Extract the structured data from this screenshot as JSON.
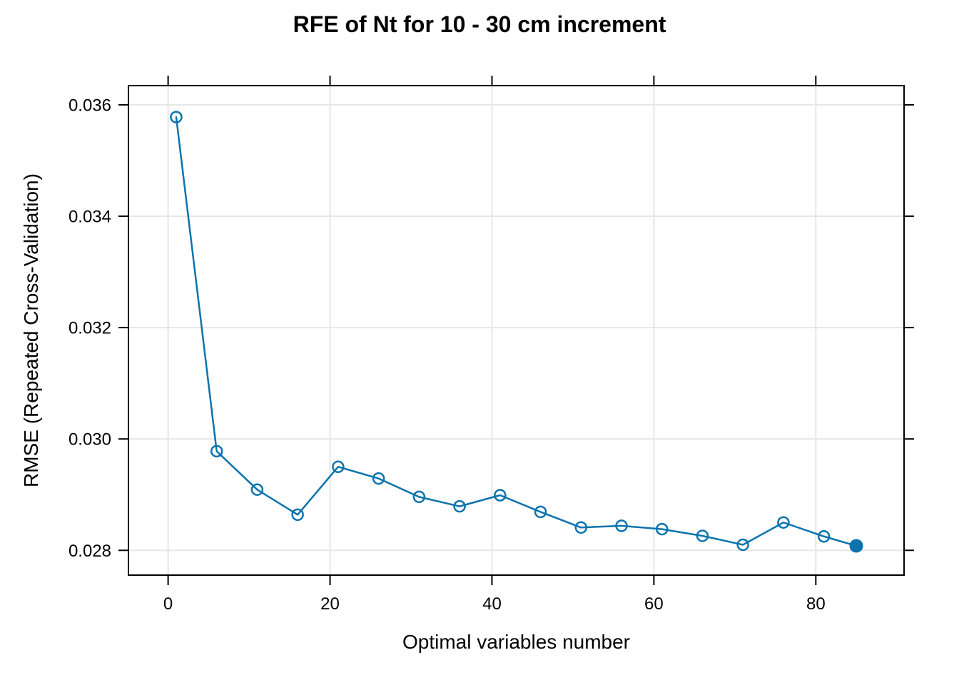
{
  "chart_data": {
    "type": "line",
    "title": "RFE of Nt for 10 - 30 cm increment",
    "xlabel": "Optimal variables number",
    "ylabel": "RMSE (Repeated Cross-Validation)",
    "series": [
      {
        "name": "RMSE (Repeated Cross-Validation)",
        "x": [
          1,
          6,
          11,
          16,
          21,
          26,
          31,
          36,
          41,
          46,
          51,
          56,
          61,
          66,
          71,
          76,
          81,
          85
        ],
        "y": [
          0.03578,
          0.02978,
          0.02909,
          0.02864,
          0.0295,
          0.02929,
          0.02896,
          0.02879,
          0.02899,
          0.02869,
          0.02841,
          0.02844,
          0.02838,
          0.02826,
          0.0281,
          0.0285,
          0.02825,
          0.02808
        ]
      }
    ],
    "best_point": {
      "x": 85,
      "y": 0.02808
    },
    "xlim": [
      -4.9,
      90.9
    ],
    "ylim": [
      0.027555,
      0.036345
    ],
    "xticks": [
      0,
      20,
      40,
      60,
      80
    ],
    "xtick_labels": [
      "0",
      "20",
      "40",
      "60",
      "80"
    ],
    "yticks": [
      0.028,
      0.03,
      0.032,
      0.034,
      0.036
    ],
    "ytick_labels": [
      "0.028",
      "0.030",
      "0.032",
      "0.034",
      "0.036"
    ],
    "grid": true,
    "legend": "none",
    "marker_style": "open-circle",
    "best_marker_style": "filled-circle",
    "colors": {
      "line": "#0B73AD",
      "marker": "#0B73AD",
      "best_marker": "#0B73AD",
      "grid": "#E6E6E6",
      "axis": "#000000",
      "text": "#000000",
      "background": "#FFFFFF"
    }
  }
}
